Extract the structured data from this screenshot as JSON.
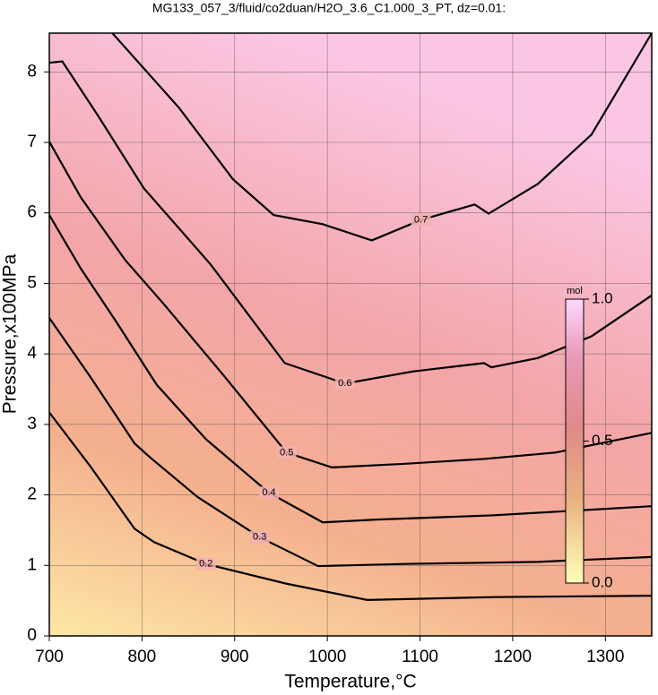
{
  "chart_data": {
    "type": "contour",
    "title": "MG133_057_3/fluid/co2duan/H2O_3.6_C1.000_3_PT, dz=0.01:",
    "x_label": "Temperature,°C",
    "y_label": "Pressure,x100MPa",
    "xlim": [
      700,
      1350
    ],
    "ylim": [
      0,
      8.55
    ],
    "xticks": [
      700,
      800,
      900,
      1000,
      1100,
      1200,
      1300
    ],
    "yticks": [
      0,
      1,
      2,
      3,
      4,
      5,
      6,
      7,
      8
    ],
    "grid": true,
    "line_color": "#000000",
    "contours": [
      {
        "level": 0.2,
        "x": [
          700,
          744,
          792,
          813,
          869,
          956,
          1043,
          1179,
          1350
        ],
        "y": [
          3.17,
          2.41,
          1.52,
          1.33,
          1.02,
          0.74,
          0.51,
          0.55,
          0.57
        ]
      },
      {
        "level": 0.3,
        "x": [
          700,
          744,
          792,
          808,
          860,
          927,
          990,
          1082,
          1227,
          1350
        ],
        "y": [
          4.51,
          3.68,
          2.73,
          2.54,
          1.97,
          1.4,
          0.99,
          1.02,
          1.05,
          1.12
        ]
      },
      {
        "level": 0.4,
        "x": [
          700,
          734,
          773,
          816,
          869,
          937,
          995,
          1053,
          1179,
          1350
        ],
        "y": [
          5.97,
          5.21,
          4.44,
          3.56,
          2.79,
          2.03,
          1.61,
          1.65,
          1.71,
          1.84
        ]
      },
      {
        "level": 0.5,
        "x": [
          700,
          734,
          782,
          824,
          889,
          956,
          1005,
          1082,
          1169,
          1246,
          1350
        ],
        "y": [
          7.01,
          6.22,
          5.33,
          4.7,
          3.68,
          2.6,
          2.39,
          2.44,
          2.51,
          2.6,
          2.88
        ]
      },
      {
        "level": 0.6,
        "x": [
          700,
          714,
          753,
          802,
          874,
          954,
          1019,
          1092,
          1169,
          1177,
          1227,
          1285,
          1350
        ],
        "y": [
          8.13,
          8.15,
          7.37,
          6.35,
          5.27,
          3.87,
          3.58,
          3.75,
          3.87,
          3.81,
          3.94,
          4.25,
          4.83
        ]
      },
      {
        "level": 0.7,
        "x": [
          768,
          840,
          898,
          942,
          995,
          1048,
          1101,
          1159,
          1174,
          1227,
          1285,
          1350
        ],
        "y": [
          8.55,
          7.49,
          6.48,
          5.97,
          5.84,
          5.61,
          5.9,
          6.12,
          5.99,
          6.41,
          7.11,
          8.55
        ]
      }
    ],
    "colorbar": {
      "label": "mol",
      "lim": [
        0,
        1
      ],
      "ticks": [
        {
          "value": 0,
          "label": "0.0"
        },
        0.5,
        {
          "value": 1,
          "label": "1.0"
        }
      ]
    }
  }
}
